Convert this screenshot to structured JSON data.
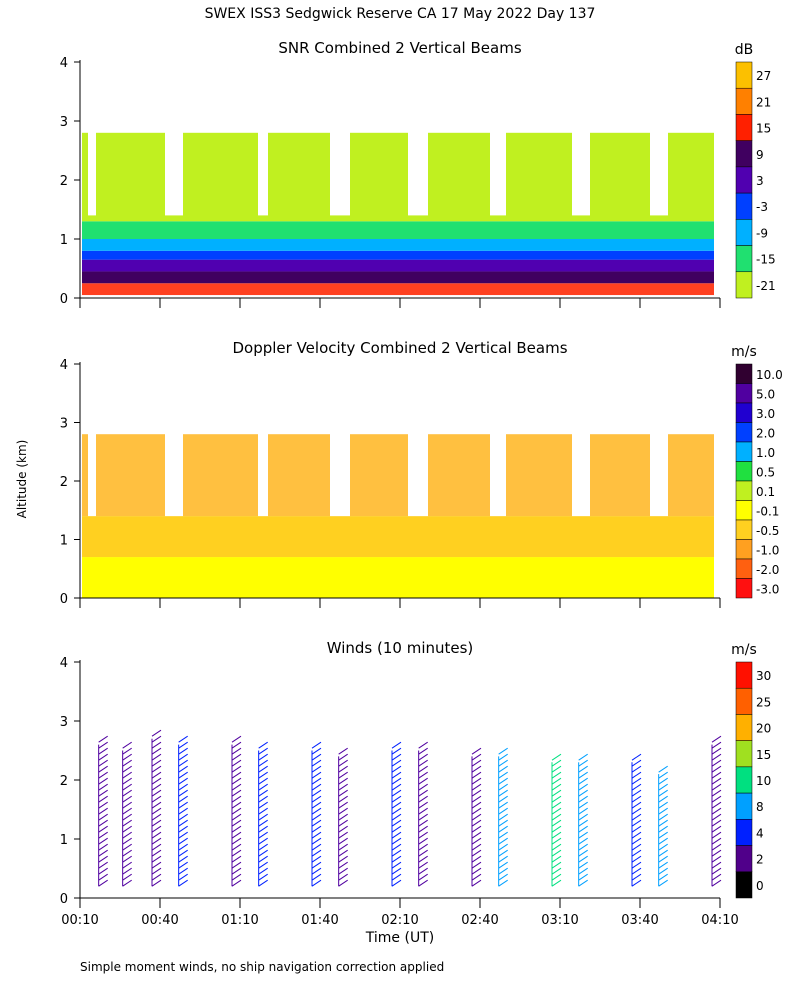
{
  "page_title": "SWEX ISS3 Sedgwick Reserve CA  17 May 2022 Day 137",
  "y_axis_label": "Altitude (km)",
  "x_axis_label": "Time (UT)",
  "footnote": "Simple moment winds, no ship navigation correction applied",
  "chart_data": [
    {
      "type": "heatmap",
      "title": "SNR Combined 2 Vertical Beams",
      "unit": "dB",
      "ylim": [
        0,
        4
      ],
      "y_ticks": [
        "0",
        "1",
        "2",
        "3",
        "4"
      ],
      "colorbar_ticks": [
        "27",
        "21",
        "15",
        "9",
        "3",
        "-3",
        "-9",
        "-15",
        "-21"
      ],
      "colorbar_colors": [
        "#fcc000",
        "#ff8000",
        "#ff2000",
        "#400060",
        "#5000b0",
        "#0040ff",
        "#00b0ff",
        "#20e070",
        "#c0f020"
      ],
      "layers": [
        {
          "from": 0.05,
          "to": 0.25,
          "color": "#ff4020"
        },
        {
          "from": 0.25,
          "to": 0.45,
          "color": "#400060"
        },
        {
          "from": 0.45,
          "to": 0.65,
          "color": "#5000b0"
        },
        {
          "from": 0.65,
          "to": 0.8,
          "color": "#0040ff"
        },
        {
          "from": 0.8,
          "to": 1.0,
          "color": "#00b0ff"
        },
        {
          "from": 1.0,
          "to": 1.3,
          "color": "#20e070"
        },
        {
          "from": 1.3,
          "to": 2.8,
          "color": "#c0f020"
        }
      ]
    },
    {
      "type": "heatmap",
      "title": "Doppler Velocity Combined 2 Vertical Beams",
      "unit": "m/s",
      "ylim": [
        0,
        4
      ],
      "y_ticks": [
        "0",
        "1",
        "2",
        "3",
        "4"
      ],
      "colorbar_ticks": [
        "10.0",
        "5.0",
        "3.0",
        "2.0",
        "1.0",
        "0.5",
        "0.1",
        "-0.1",
        "-0.5",
        "-1.0",
        "-2.0",
        "-3.0"
      ],
      "colorbar_colors": [
        "#300030",
        "#5000a0",
        "#2000d0",
        "#0040ff",
        "#00b0ff",
        "#20e040",
        "#c0f020",
        "#ffff00",
        "#ffd020",
        "#ffa020",
        "#ff6010",
        "#ff1010"
      ],
      "layers": [
        {
          "from": 0.0,
          "to": 0.7,
          "color": "#ffff00"
        },
        {
          "from": 0.7,
          "to": 1.4,
          "color": "#ffd020"
        },
        {
          "from": 1.4,
          "to": 2.8,
          "color": "#ffc040"
        }
      ]
    },
    {
      "type": "wind-barbs",
      "title": "Winds (10 minutes)",
      "unit": "m/s",
      "ylim": [
        0,
        4
      ],
      "y_ticks": [
        "0",
        "1",
        "2",
        "3",
        "4"
      ],
      "x_ticks": [
        "00:10",
        "00:40",
        "01:10",
        "01:40",
        "02:10",
        "02:40",
        "03:10",
        "03:40",
        "04:10"
      ],
      "colorbar_ticks": [
        "30",
        "25",
        "20",
        "15",
        "10",
        "8",
        "4",
        "2",
        "0"
      ],
      "colorbar_colors": [
        "#ff1000",
        "#ff6000",
        "#ffb000",
        "#a0e020",
        "#00e080",
        "#00a0ff",
        "#0020ff",
        "#50008a",
        "#000000"
      ],
      "profiles": [
        {
          "time": "00:17",
          "top_km": 2.6,
          "color": "#5000a0"
        },
        {
          "time": "00:26",
          "top_km": 2.5,
          "color": "#5000a0"
        },
        {
          "time": "00:37",
          "top_km": 2.7,
          "color": "#5000a0"
        },
        {
          "time": "00:47",
          "top_km": 2.6,
          "color": "#0020ff"
        },
        {
          "time": "01:07",
          "top_km": 2.6,
          "color": "#5000a0"
        },
        {
          "time": "01:17",
          "top_km": 2.5,
          "color": "#0020ff"
        },
        {
          "time": "01:37",
          "top_km": 2.5,
          "color": "#0020ff"
        },
        {
          "time": "01:47",
          "top_km": 2.4,
          "color": "#5000a0"
        },
        {
          "time": "02:07",
          "top_km": 2.5,
          "color": "#0020ff"
        },
        {
          "time": "02:17",
          "top_km": 2.5,
          "color": "#5000a0"
        },
        {
          "time": "02:37",
          "top_km": 2.4,
          "color": "#5000a0"
        },
        {
          "time": "02:47",
          "top_km": 2.4,
          "color": "#00a0ff"
        },
        {
          "time": "03:07",
          "top_km": 2.3,
          "color": "#00e080"
        },
        {
          "time": "03:17",
          "top_km": 2.3,
          "color": "#00a0ff"
        },
        {
          "time": "03:37",
          "top_km": 2.3,
          "color": "#0020ff"
        },
        {
          "time": "03:47",
          "top_km": 2.1,
          "color": "#00a0ff"
        },
        {
          "time": "04:07",
          "top_km": 2.6,
          "color": "#5000a0"
        }
      ]
    }
  ]
}
